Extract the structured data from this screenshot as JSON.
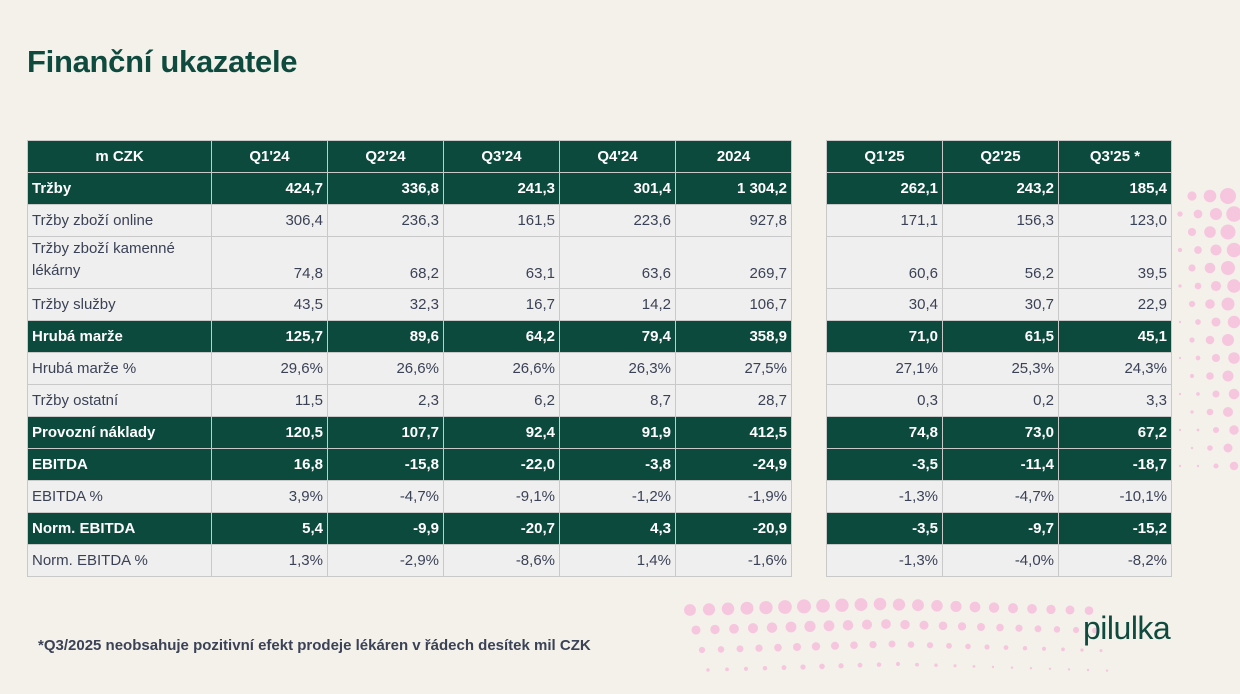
{
  "page": {
    "title": "Finanční ukazatele",
    "footnote": "*Q3/2025 neobsahuje pozitivní efekt prodeje lékáren v řádech desítek mil CZK",
    "logo_text": "pilulka"
  },
  "colors": {
    "background": "#f3f1ea",
    "header_fill": "#0d4a3e",
    "light_row": "#efefef",
    "text_dark": "#3b4256",
    "accent_dots": "#f6c6df"
  },
  "table": {
    "headers_left": [
      "m CZK",
      "Q1'24",
      "Q2'24",
      "Q3'24",
      "Q4'24",
      "2024"
    ],
    "headers_right": [
      "Q1'25",
      "Q2'25",
      "Q3'25 *"
    ],
    "rows": [
      {
        "label": "Tržby",
        "style": "dark",
        "left": [
          "424,7",
          "336,8",
          "241,3",
          "301,4",
          "1 304,2"
        ],
        "right": [
          "262,1",
          "243,2",
          "185,4"
        ]
      },
      {
        "label": "Tržby zboží online",
        "style": "light",
        "left": [
          "306,4",
          "236,3",
          "161,5",
          "223,6",
          "927,8"
        ],
        "right": [
          "171,1",
          "156,3",
          "123,0"
        ]
      },
      {
        "label": "Tržby zboží kamenné lékárny",
        "style": "light",
        "tall": true,
        "left": [
          "74,8",
          "68,2",
          "63,1",
          "63,6",
          "269,7"
        ],
        "right": [
          "60,6",
          "56,2",
          "39,5"
        ]
      },
      {
        "label": "Tržby služby",
        "style": "light",
        "left": [
          "43,5",
          "32,3",
          "16,7",
          "14,2",
          "106,7"
        ],
        "right": [
          "30,4",
          "30,7",
          "22,9"
        ]
      },
      {
        "label": "Hrubá marže",
        "style": "dark",
        "left": [
          "125,7",
          "89,6",
          "64,2",
          "79,4",
          "358,9"
        ],
        "right": [
          "71,0",
          "61,5",
          "45,1"
        ]
      },
      {
        "label": "Hrubá marže %",
        "style": "light",
        "left": [
          "29,6%",
          "26,6%",
          "26,6%",
          "26,3%",
          "27,5%"
        ],
        "right": [
          "27,1%",
          "25,3%",
          "24,3%"
        ]
      },
      {
        "label": "Tržby ostatní",
        "style": "light",
        "left": [
          "11,5",
          "2,3",
          "6,2",
          "8,7",
          "28,7"
        ],
        "right": [
          "0,3",
          "0,2",
          "3,3"
        ]
      },
      {
        "label": "Provozní náklady",
        "style": "dark",
        "left": [
          "120,5",
          "107,7",
          "92,4",
          "91,9",
          "412,5"
        ],
        "right": [
          "74,8",
          "73,0",
          "67,2"
        ]
      },
      {
        "label": "EBITDA",
        "style": "dark",
        "left": [
          "16,8",
          "-15,8",
          "-22,0",
          "-3,8",
          "-24,9"
        ],
        "right": [
          "-3,5",
          "-11,4",
          "-18,7"
        ]
      },
      {
        "label": "EBITDA %",
        "style": "light",
        "left": [
          "3,9%",
          "-4,7%",
          "-9,1%",
          "-1,2%",
          "-1,9%"
        ],
        "right": [
          "-1,3%",
          "-4,7%",
          "-10,1%"
        ]
      },
      {
        "label": "Norm. EBITDA",
        "style": "dark",
        "left": [
          "5,4",
          "-9,9",
          "-20,7",
          "4,3",
          "-20,9"
        ],
        "right": [
          "-3,5",
          "-9,7",
          "-15,2"
        ]
      },
      {
        "label": "Norm. EBITDA %",
        "style": "light",
        "left": [
          "1,3%",
          "-2,9%",
          "-8,6%",
          "1,4%",
          "-1,6%"
        ],
        "right": [
          "-1,3%",
          "-4,0%",
          "-8,2%"
        ]
      }
    ]
  }
}
